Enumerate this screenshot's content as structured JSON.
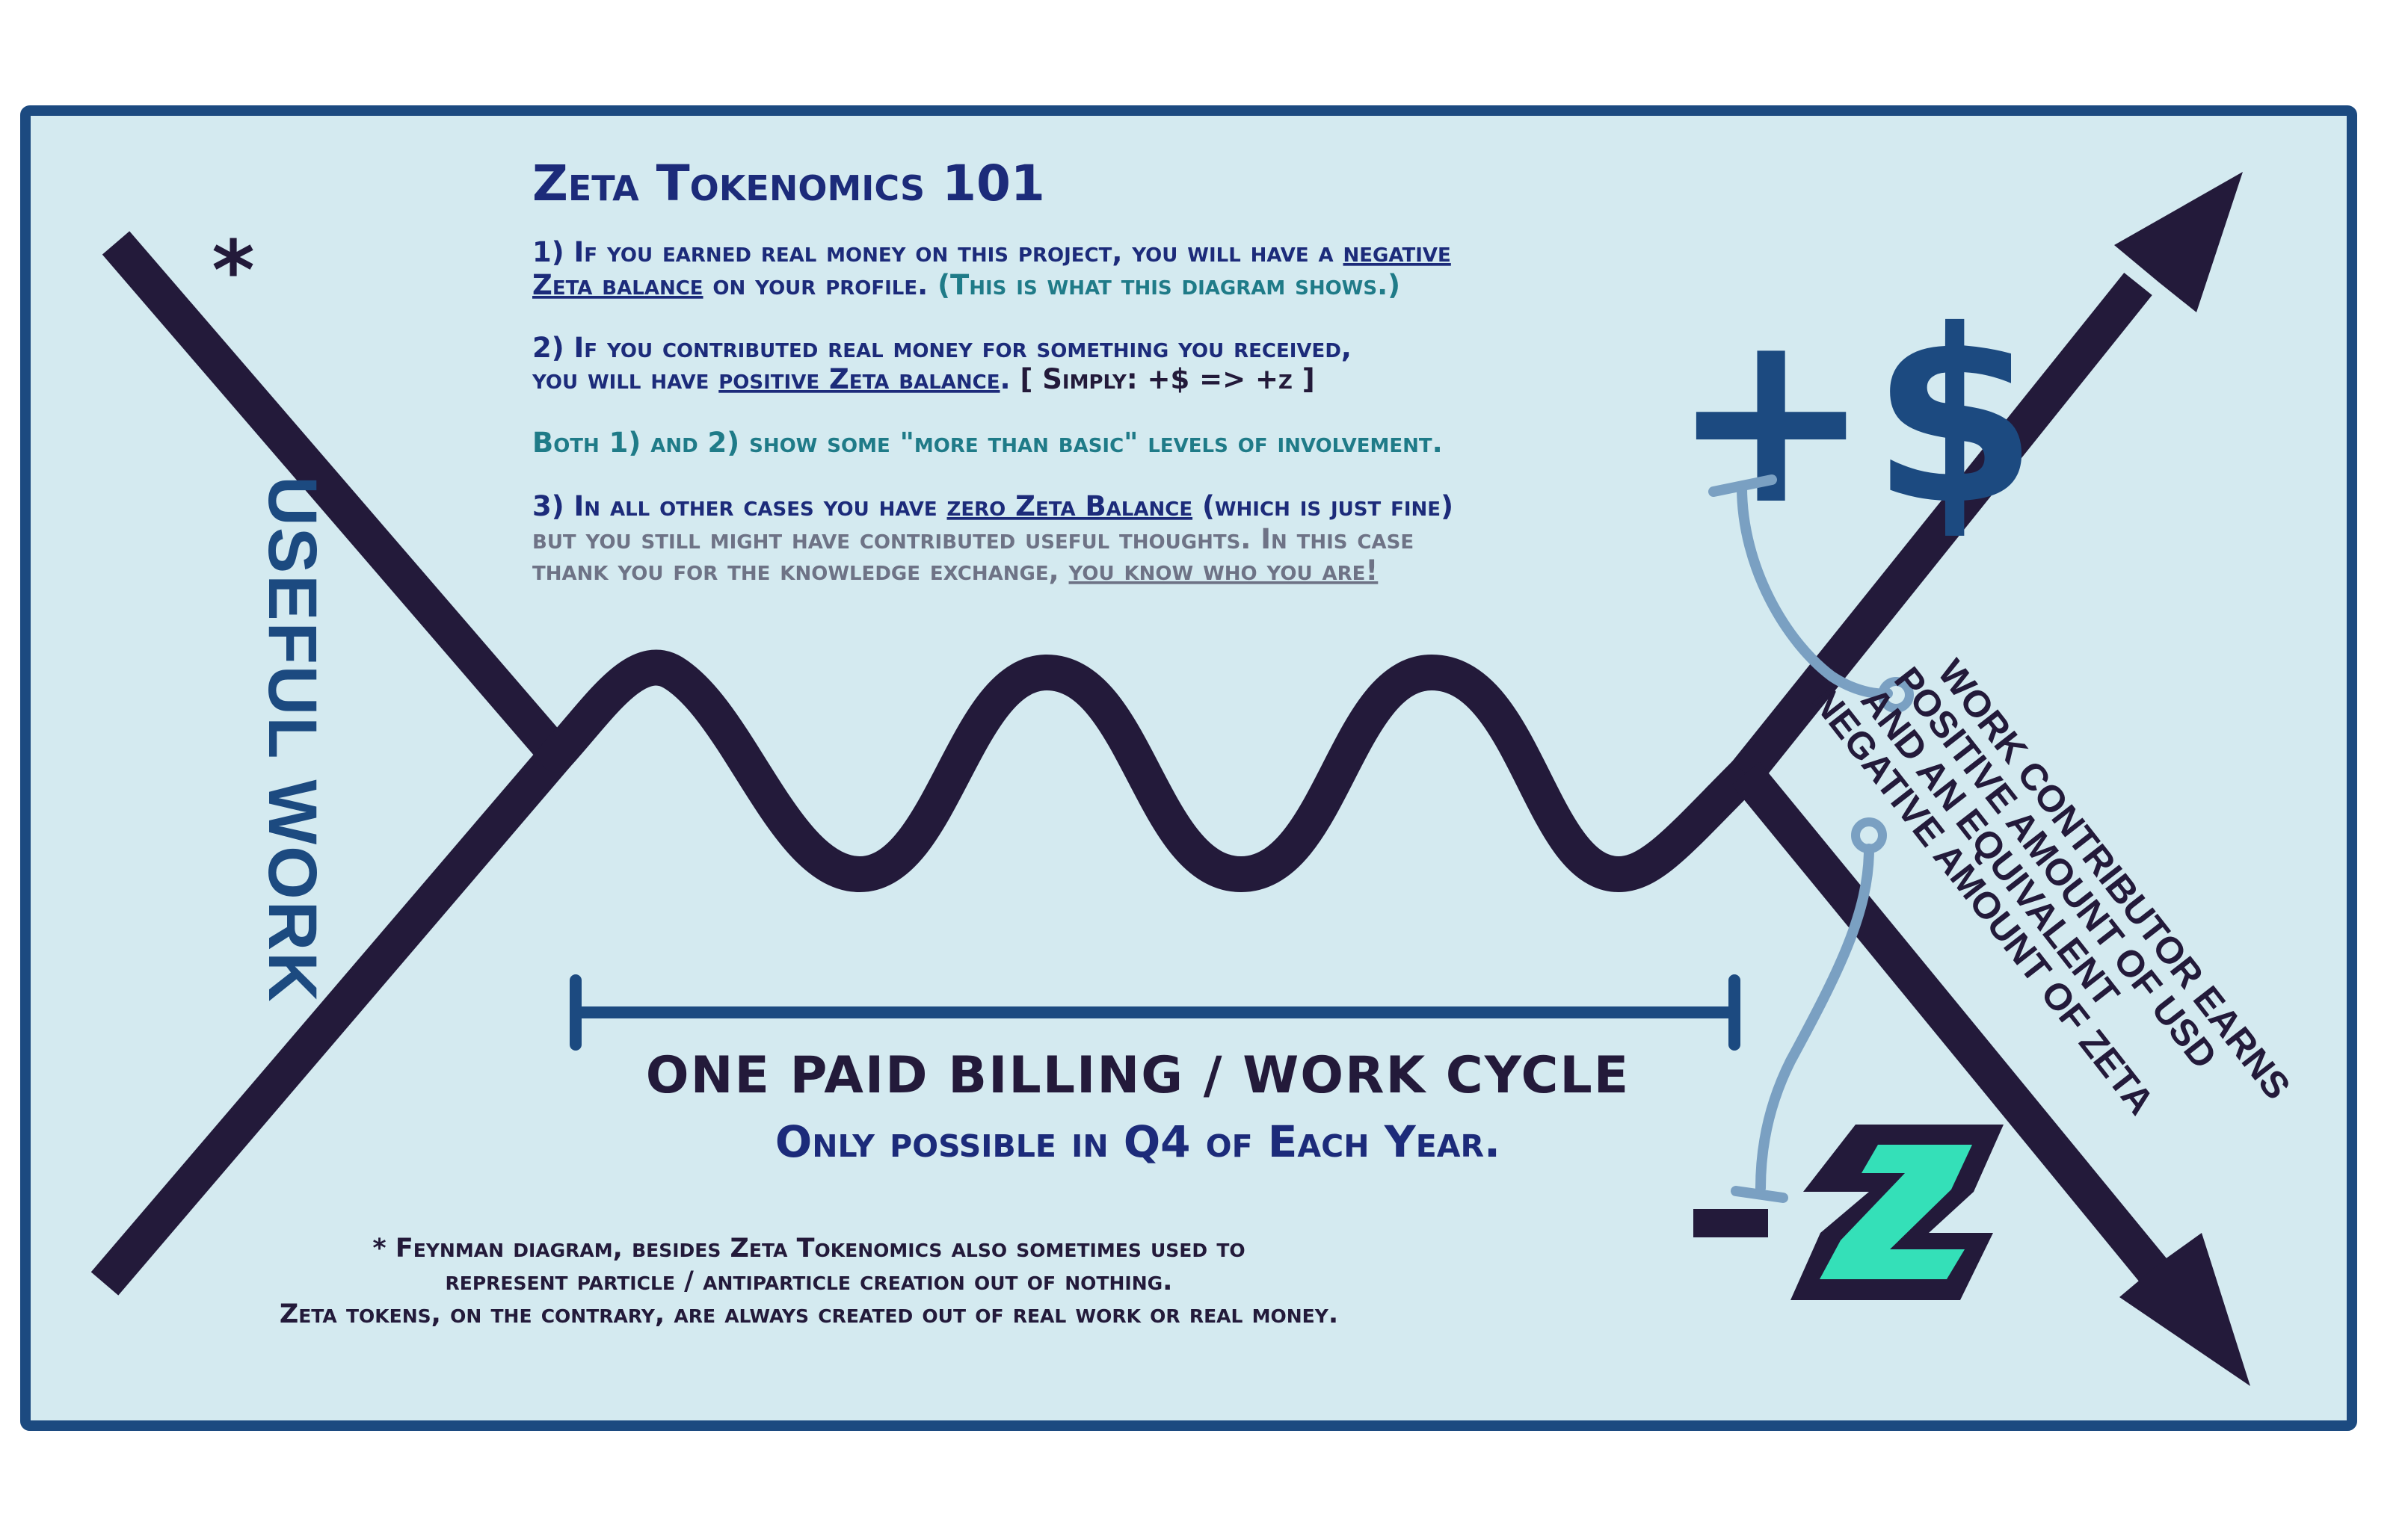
{
  "title": "Zeta Tokenomics 101",
  "asterisk": "*",
  "point1": {
    "line1_prefix": "1) If you earned real money on this project, you will have a ",
    "line1_link": "negative",
    "line2_link": "Zeta balance",
    "line2_middle": " on your profile. ",
    "line2_note": "(This is what this diagram shows.)"
  },
  "point2": {
    "line1": "2) If you contributed real money for something you received,",
    "line2_prefix": "you will have ",
    "line2_link": "positive Zeta balance",
    "line2_dot": ". ",
    "simply": "[ Simply: +$ => +z ]"
  },
  "both_line": "Both 1) and 2) show some \"more than basic\" levels of involvement.",
  "point3": {
    "line1_prefix": "3) In all other cases you have ",
    "line1_link": "zero Zeta Balance",
    "line1_suffix": " (which is just fine)",
    "line2": "but you still might have contributed useful thoughts. In this case",
    "line3_prefix": "thank you for the knowledge exchange, ",
    "line3_link": "you know who you are!"
  },
  "useful_work_label": "USEFUL WORK",
  "plus_dollar": "+$",
  "minus_label": "-",
  "zeta_letter": "Z",
  "contributor_text": [
    "WORK CONTRIBUTOR EARNS",
    "POSITIVE AMOUNT OF USD",
    "AND AN EQUIVALENT",
    "NEGATIVE AMOUNT OF ZETA"
  ],
  "cycle_label": "ONE PAID BILLING / WORK CYCLE",
  "cycle_sublabel": "Only possible in Q4 of Each Year.",
  "footnote": [
    "* Feynman diagram, besides Zeta Tokenomics also sometimes used to",
    "represent particle / antiparticle creation out of nothing.",
    "Zeta tokens, on the contrary, are always created out of real work or real money."
  ],
  "colors": {
    "panel_bg": "#d4eaf0",
    "panel_border": "#1c4a80",
    "line_ink": "#231a3a",
    "title_navy": "#1c2b7a",
    "note_teal": "#1f7b88",
    "muted_grey": "#6e7386",
    "accent_blue": "#1c4a80",
    "connector_blue": "#7aa0c2",
    "zeta_green": "#34e0b8"
  }
}
